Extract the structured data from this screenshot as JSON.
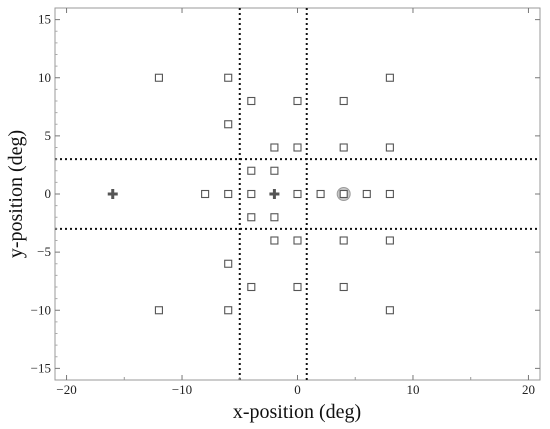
{
  "chart_data": {
    "type": "scatter",
    "title": "",
    "xlabel": "x-position (deg)",
    "ylabel": "y-position (deg)",
    "xlim": [
      -21,
      21
    ],
    "ylim": [
      -16,
      16
    ],
    "xticks": [
      -20,
      -10,
      0,
      10,
      20
    ],
    "yticks": [
      -15,
      -10,
      -5,
      0,
      5,
      10,
      15
    ],
    "xtick_labels": [
      "−20",
      "−10",
      "0",
      "10",
      "20"
    ],
    "ytick_labels": [
      "−15",
      "−10",
      "−5",
      "0",
      "5",
      "10",
      "15"
    ],
    "grid": false,
    "reference_lines": {
      "vertical_x": [
        -5,
        0.8
      ],
      "horizontal_y": [
        3,
        -3
      ],
      "style": "dotted"
    },
    "series": [
      {
        "marker": "open-square",
        "color": "#555555",
        "points": [
          [
            -12,
            10
          ],
          [
            -6,
            10
          ],
          [
            8,
            10
          ],
          [
            -4,
            8
          ],
          [
            0,
            8
          ],
          [
            4,
            8
          ],
          [
            -6,
            6
          ],
          [
            -2,
            4
          ],
          [
            0,
            4
          ],
          [
            4,
            4
          ],
          [
            8,
            4
          ],
          [
            -4,
            2
          ],
          [
            -2,
            2
          ],
          [
            -8,
            0
          ],
          [
            -6,
            0
          ],
          [
            -4,
            0
          ],
          [
            0,
            0
          ],
          [
            2,
            0
          ],
          [
            4,
            0
          ],
          [
            6,
            0
          ],
          [
            8,
            0
          ],
          [
            -4,
            -2
          ],
          [
            -2,
            -2
          ],
          [
            -2,
            -4
          ],
          [
            0,
            -4
          ],
          [
            4,
            -4
          ],
          [
            8,
            -4
          ],
          [
            -6,
            -6
          ],
          [
            -4,
            -8
          ],
          [
            0,
            -8
          ],
          [
            4,
            -8
          ],
          [
            -12,
            -10
          ],
          [
            -6,
            -10
          ],
          [
            8,
            -10
          ]
        ]
      },
      {
        "marker": "plus",
        "color": "#555555",
        "points": [
          [
            -16,
            0
          ],
          [
            -2,
            0
          ]
        ]
      },
      {
        "marker": "circle-highlight",
        "color": "#aaaaaa",
        "points": [
          [
            4,
            0
          ]
        ]
      }
    ]
  }
}
